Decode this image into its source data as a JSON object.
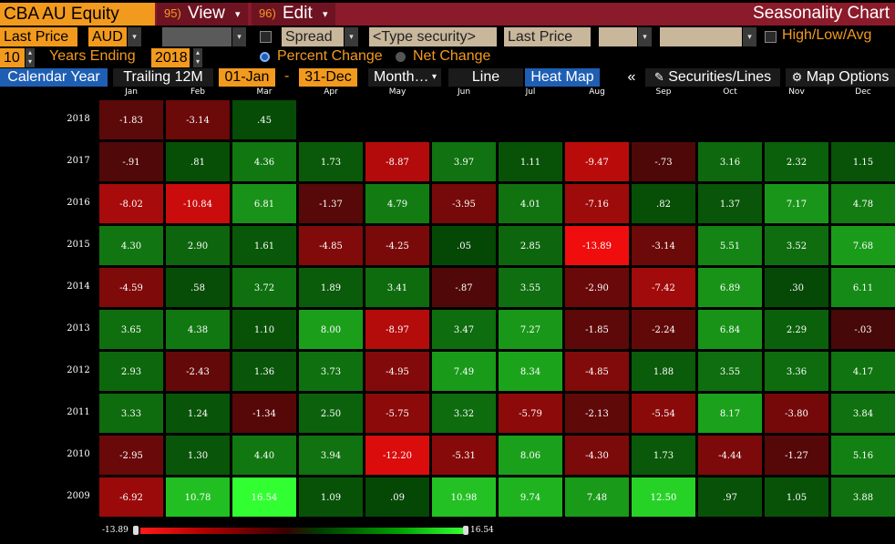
{
  "toolbar1": {
    "security": "CBA AU Equity",
    "view_num": "95)",
    "view_label": "View",
    "edit_num": "96)",
    "edit_label": "Edit",
    "chart_title": "Seasonality Chart",
    "dropdown_arrow": "▾"
  },
  "toolbar2": {
    "field": "Last Price",
    "currency": "AUD",
    "spread": "Spread",
    "type_security": "<Type security>",
    "field2": "Last Price",
    "hla": "High/Low/Avg"
  },
  "toolbar3": {
    "years": "10",
    "years_label": "Years Ending",
    "end_year": "2018",
    "percent_change": "Percent Change",
    "net_change": "Net Change"
  },
  "toolbar4": {
    "calendar_year": "Calendar Year",
    "trailing": "Trailing 12M",
    "start": "01-Jan",
    "dash": "-",
    "end": "31-Dec",
    "period": "Month…",
    "line": "Line",
    "heat_map": "Heat Map",
    "collapse": "«",
    "securities": "Securities/Lines",
    "map_options": "Map Options"
  },
  "months": [
    "Jan",
    "Feb",
    "Mar",
    "Apr",
    "May",
    "Jun",
    "Jul",
    "Aug",
    "Sep",
    "Oct",
    "Nov",
    "Dec"
  ],
  "years": [
    "2018",
    "2017",
    "2016",
    "2015",
    "2014",
    "2013",
    "2012",
    "2011",
    "2010",
    "2009"
  ],
  "values": [
    [
      "-1.83",
      "-3.14",
      ".45",
      "",
      "",
      "",
      "",
      "",
      "",
      "",
      "",
      ""
    ],
    [
      "-.91",
      ".81",
      "4.36",
      "1.73",
      "-8.87",
      "3.97",
      "1.11",
      "-9.47",
      "-.73",
      "3.16",
      "2.32",
      "1.15"
    ],
    [
      "-8.02",
      "-10.84",
      "6.81",
      "-1.37",
      "4.79",
      "-3.95",
      "4.01",
      "-7.16",
      ".82",
      "1.37",
      "7.17",
      "4.78"
    ],
    [
      "4.30",
      "2.90",
      "1.61",
      "-4.85",
      "-4.25",
      ".05",
      "2.85",
      "-13.89",
      "-3.14",
      "5.51",
      "3.52",
      "7.68"
    ],
    [
      "-4.59",
      ".58",
      "3.72",
      "1.89",
      "3.41",
      "-.87",
      "3.55",
      "-2.90",
      "-7.42",
      "6.89",
      ".30",
      "6.11"
    ],
    [
      "3.65",
      "4.38",
      "1.10",
      "8.00",
      "-8.97",
      "3.47",
      "7.27",
      "-1.85",
      "-2.24",
      "6.84",
      "2.29",
      "-.03"
    ],
    [
      "2.93",
      "-2.43",
      "1.36",
      "3.73",
      "-4.95",
      "7.49",
      "8.34",
      "-4.85",
      "1.88",
      "3.55",
      "3.36",
      "4.17"
    ],
    [
      "3.33",
      "1.24",
      "-1.34",
      "2.50",
      "-5.75",
      "3.32",
      "-5.79",
      "-2.13",
      "-5.54",
      "8.17",
      "-3.80",
      "3.84"
    ],
    [
      "-2.95",
      "1.30",
      "4.40",
      "3.94",
      "-12.20",
      "-5.31",
      "8.06",
      "-4.30",
      "1.73",
      "-4.44",
      "-1.27",
      "5.16"
    ],
    [
      "-6.92",
      "10.78",
      "16.54",
      "1.09",
      ".09",
      "10.98",
      "9.74",
      "7.48",
      "12.50",
      ".97",
      "1.05",
      "3.88"
    ]
  ],
  "scale": {
    "min": "-13.89",
    "max": "16.54"
  },
  "colors": {
    "accent": "#f29a1d",
    "title_bar": "#8b1a2a",
    "active_tab": "#1f5fb3"
  }
}
